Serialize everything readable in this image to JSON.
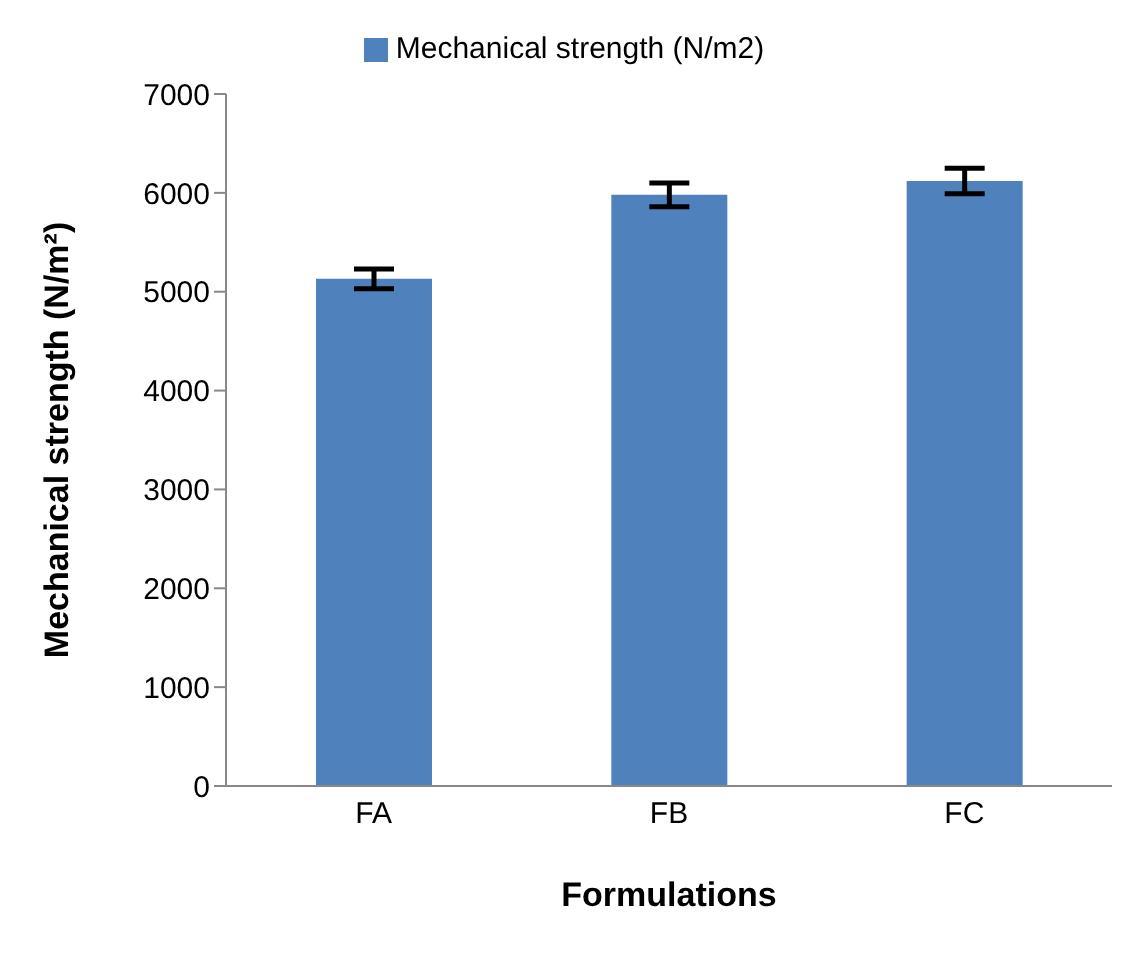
{
  "chart_data": {
    "type": "bar",
    "xlabel": "Formulations",
    "ylabel": "Mechanical strength (N/m²)",
    "categories": [
      "FA",
      "FB",
      "FC"
    ],
    "series": [
      {
        "name": "Mechanical strength (N/m2)",
        "color": "#4f81bd",
        "values": [
          5130,
          5980,
          6120
        ],
        "errors": [
          100,
          120,
          130
        ]
      }
    ],
    "ylim": [
      0,
      7000
    ],
    "yticks": [
      0,
      1000,
      2000,
      3000,
      4000,
      5000,
      6000,
      7000
    ],
    "grid": false,
    "legend": "top"
  }
}
